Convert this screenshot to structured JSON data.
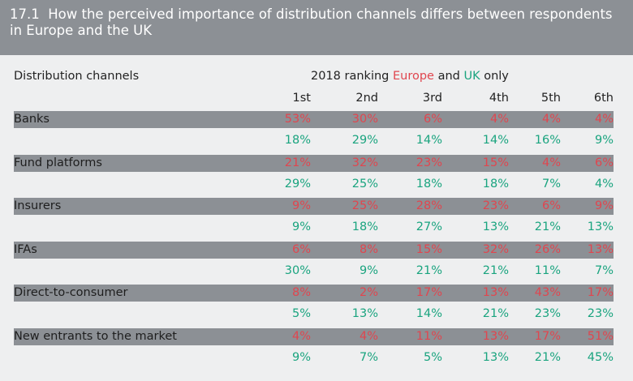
{
  "title_number": "17.1",
  "title": "How the perceived importance of distribution channels differs between respondents in Europe and the UK",
  "column_label": "Distribution channels",
  "ranking": {
    "prefix": "2018 ranking ",
    "europe": "Europe",
    "and": " and ",
    "uk": "UK",
    "suffix": " only"
  },
  "rank_headers": [
    "1st",
    "2nd",
    "3rd",
    "4th",
    "5th",
    "6th"
  ],
  "colors": {
    "europe": "#e0464f",
    "uk": "#1aa47f",
    "band": "#8c9095"
  },
  "rows": [
    {
      "label": "Banks",
      "europe": [
        "53%",
        "30%",
        "6%",
        "4%",
        "4%",
        "4%"
      ],
      "uk": [
        "18%",
        "29%",
        "14%",
        "14%",
        "16%",
        "9%"
      ]
    },
    {
      "label": "Fund platforms",
      "europe": [
        "21%",
        "32%",
        "23%",
        "15%",
        "4%",
        "6%"
      ],
      "uk": [
        "29%",
        "25%",
        "18%",
        "18%",
        "7%",
        "4%"
      ]
    },
    {
      "label": "Insurers",
      "europe": [
        "9%",
        "25%",
        "28%",
        "23%",
        "6%",
        "9%"
      ],
      "uk": [
        "9%",
        "18%",
        "27%",
        "13%",
        "21%",
        "13%"
      ]
    },
    {
      "label": "IFAs",
      "europe": [
        "6%",
        "8%",
        "15%",
        "32%",
        "26%",
        "13%"
      ],
      "uk": [
        "30%",
        "9%",
        "21%",
        "21%",
        "11%",
        "7%"
      ]
    },
    {
      "label": "Direct-to-consumer",
      "europe": [
        "8%",
        "2%",
        "17%",
        "13%",
        "43%",
        "17%"
      ],
      "uk": [
        "5%",
        "13%",
        "14%",
        "21%",
        "23%",
        "23%"
      ]
    },
    {
      "label": "New entrants to the market",
      "europe": [
        "4%",
        "4%",
        "11%",
        "13%",
        "17%",
        "51%"
      ],
      "uk": [
        "9%",
        "7%",
        "5%",
        "13%",
        "21%",
        "45%"
      ]
    }
  ]
}
